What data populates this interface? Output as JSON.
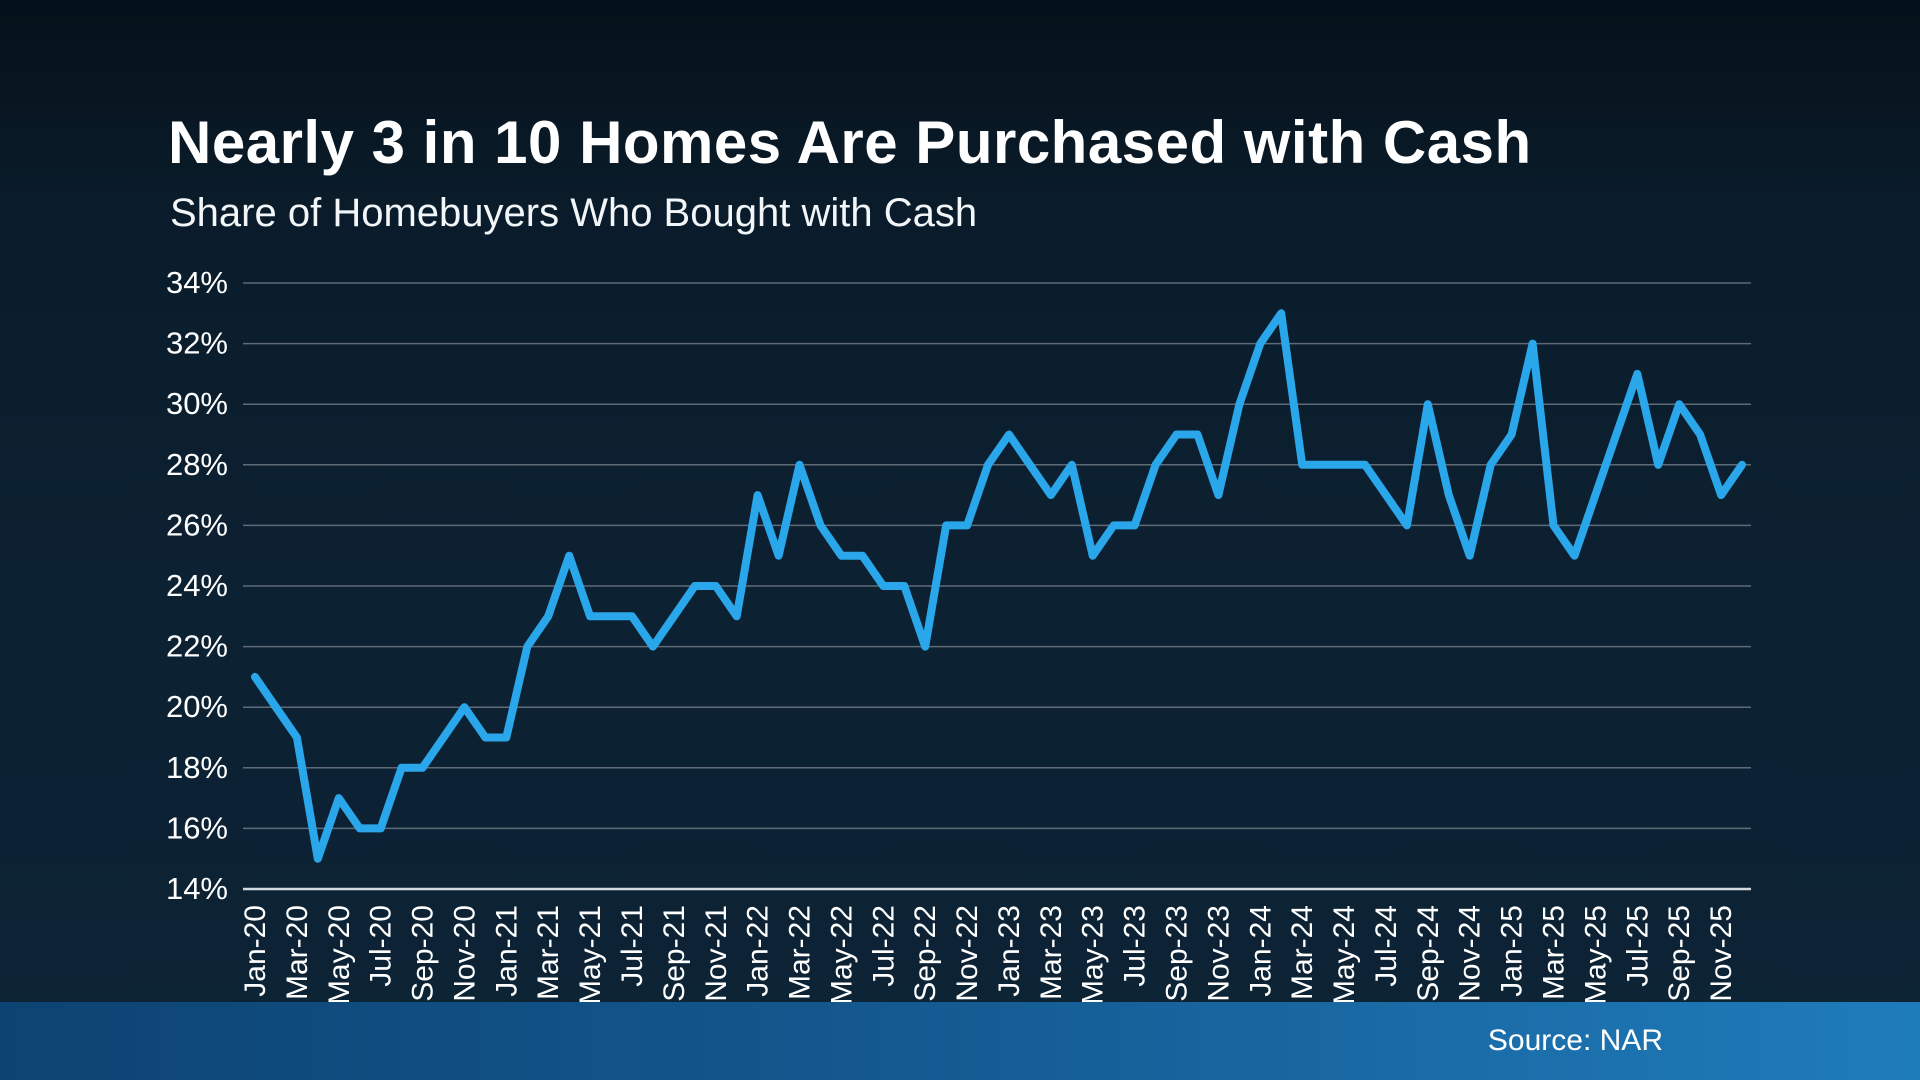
{
  "header": {
    "title": "Nearly 3 in 10 Homes Are Purchased with Cash",
    "subtitle": "Share of Homebuyers Who Bought with Cash"
  },
  "footer": {
    "source": "Source: NAR"
  },
  "colors": {
    "line": "#2aa6ea",
    "grid": "#8c949c",
    "axis": "#dde4e9",
    "label": "#ffffff",
    "background_dark": "#0c2132",
    "bottom_bar_left": "#0c4372",
    "bottom_bar_right": "#1f7cbb"
  },
  "chart_data": {
    "type": "line",
    "title": "Nearly 3 in 10 Homes Are Purchased with Cash",
    "subtitle": "Share of Homebuyers Who Bought with Cash",
    "xlabel": "",
    "ylabel": "",
    "ylim": [
      14,
      34
    ],
    "ytick_step": 2,
    "ytick_suffix": "%",
    "xtick_every": 2,
    "grid": "horizontal",
    "legend": "none",
    "points": [
      {
        "x": "Jan-20",
        "y": 21
      },
      {
        "x": "Feb-20",
        "y": 20
      },
      {
        "x": "Mar-20",
        "y": 19
      },
      {
        "x": "Apr-20",
        "y": 15
      },
      {
        "x": "May-20",
        "y": 17
      },
      {
        "x": "Jun-20",
        "y": 16
      },
      {
        "x": "Jul-20",
        "y": 16
      },
      {
        "x": "Aug-20",
        "y": 18
      },
      {
        "x": "Sep-20",
        "y": 18
      },
      {
        "x": "Oct-20",
        "y": 19
      },
      {
        "x": "Nov-20",
        "y": 20
      },
      {
        "x": "Dec-20",
        "y": 19
      },
      {
        "x": "Jan-21",
        "y": 19
      },
      {
        "x": "Feb-21",
        "y": 22
      },
      {
        "x": "Mar-21",
        "y": 23
      },
      {
        "x": "Apr-21",
        "y": 25
      },
      {
        "x": "May-21",
        "y": 23
      },
      {
        "x": "Jun-21",
        "y": 23
      },
      {
        "x": "Jul-21",
        "y": 23
      },
      {
        "x": "Aug-21",
        "y": 22
      },
      {
        "x": "Sep-21",
        "y": 23
      },
      {
        "x": "Oct-21",
        "y": 24
      },
      {
        "x": "Nov-21",
        "y": 24
      },
      {
        "x": "Dec-21",
        "y": 23
      },
      {
        "x": "Jan-22",
        "y": 27
      },
      {
        "x": "Feb-22",
        "y": 25
      },
      {
        "x": "Mar-22",
        "y": 28
      },
      {
        "x": "Apr-22",
        "y": 26
      },
      {
        "x": "May-22",
        "y": 25
      },
      {
        "x": "Jun-22",
        "y": 25
      },
      {
        "x": "Jul-22",
        "y": 24
      },
      {
        "x": "Aug-22",
        "y": 24
      },
      {
        "x": "Sep-22",
        "y": 22
      },
      {
        "x": "Oct-22",
        "y": 26
      },
      {
        "x": "Nov-22",
        "y": 26
      },
      {
        "x": "Dec-22",
        "y": 28
      },
      {
        "x": "Jan-23",
        "y": 29
      },
      {
        "x": "Feb-23",
        "y": 28
      },
      {
        "x": "Mar-23",
        "y": 27
      },
      {
        "x": "Apr-23",
        "y": 28
      },
      {
        "x": "May-23",
        "y": 25
      },
      {
        "x": "Jun-23",
        "y": 26
      },
      {
        "x": "Jul-23",
        "y": 26
      },
      {
        "x": "Aug-23",
        "y": 28
      },
      {
        "x": "Sep-23",
        "y": 29
      },
      {
        "x": "Oct-23",
        "y": 29
      },
      {
        "x": "Nov-23",
        "y": 27
      },
      {
        "x": "Dec-23",
        "y": 30
      },
      {
        "x": "Jan-24",
        "y": 32
      },
      {
        "x": "Feb-24",
        "y": 33
      },
      {
        "x": "Mar-24",
        "y": 28
      },
      {
        "x": "Apr-24",
        "y": 28
      },
      {
        "x": "May-24",
        "y": 28
      },
      {
        "x": "Jun-24",
        "y": 28
      },
      {
        "x": "Jul-24",
        "y": 27
      },
      {
        "x": "Aug-24",
        "y": 26
      },
      {
        "x": "Sep-24",
        "y": 30
      },
      {
        "x": "Oct-24",
        "y": 27
      },
      {
        "x": "Nov-24",
        "y": 25
      },
      {
        "x": "Dec-24",
        "y": 28
      },
      {
        "x": "Jan-25",
        "y": 29
      },
      {
        "x": "Feb-25",
        "y": 32
      },
      {
        "x": "Mar-25",
        "y": 26
      },
      {
        "x": "Apr-25",
        "y": 25
      },
      {
        "x": "May-25",
        "y": 27
      },
      {
        "x": "Jun-25",
        "y": 29
      },
      {
        "x": "Jul-25",
        "y": 31
      },
      {
        "x": "Aug-25",
        "y": 28
      },
      {
        "x": "Sep-25",
        "y": 30
      },
      {
        "x": "Oct-25",
        "y": 29
      },
      {
        "x": "Nov-25",
        "y": 27
      },
      {
        "x": "Dec-25",
        "y": 28
      }
    ]
  }
}
